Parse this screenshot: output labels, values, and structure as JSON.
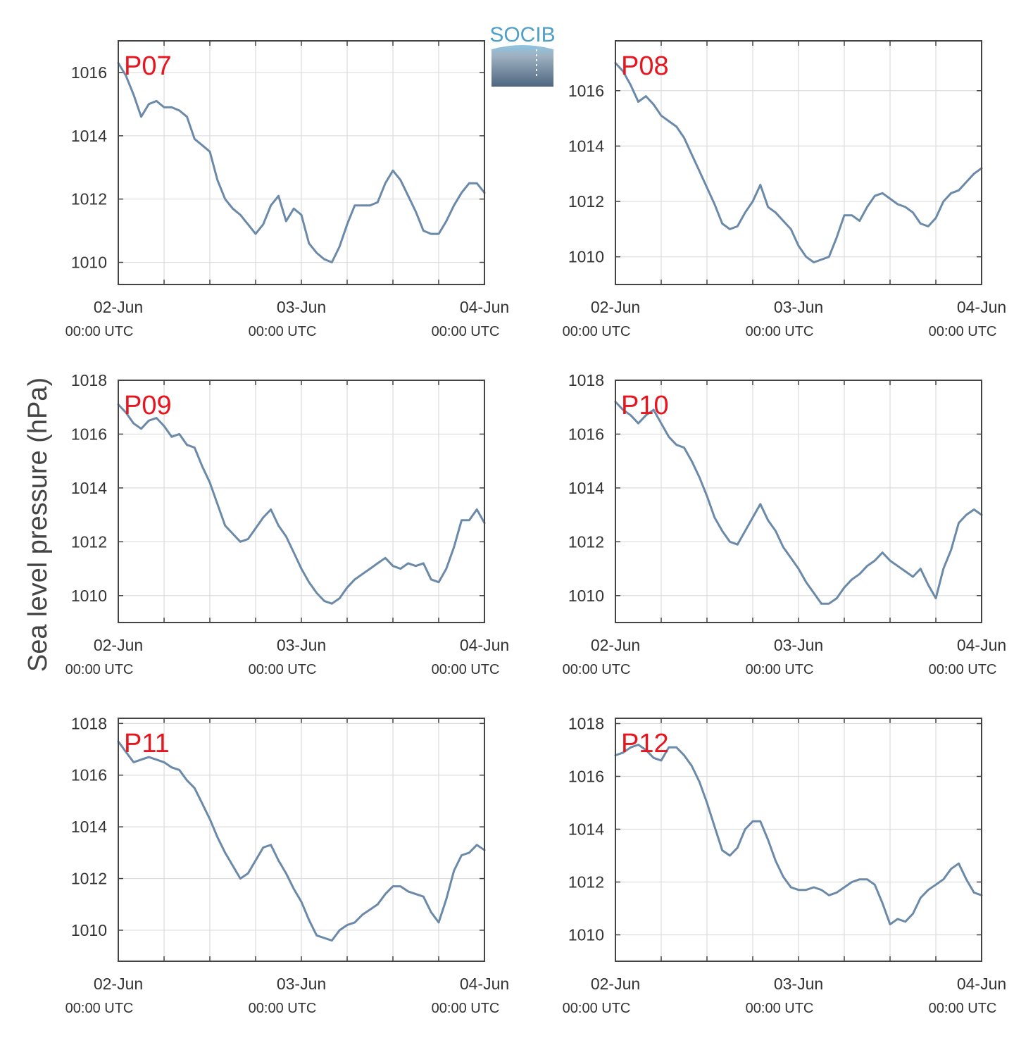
{
  "logo": {
    "text": "SOCIB"
  },
  "ylabel": "Sea level pressure (hPa)",
  "colors": {
    "line": "#6b89a8",
    "grid": "#dddddd",
    "axis": "#444444",
    "label": "#e8141e"
  },
  "chart_data": [
    {
      "type": "line",
      "title": "P07",
      "ylabel": "Sea level pressure (hPa)",
      "x_tick_labels": [
        {
          "x": 0,
          "date": "02-Jun",
          "time": "00:00 UTC"
        },
        {
          "x": 24,
          "date": "03-Jun",
          "time": "00:00 UTC"
        },
        {
          "x": 48,
          "date": "04-Jun",
          "time": "00:00 UTC"
        }
      ],
      "x_unit": "hours since 02-Jun 00:00 UTC",
      "xlim": [
        0,
        48
      ],
      "ylim": [
        1009.3,
        1017.0
      ],
      "yticks": [
        1010,
        1012,
        1014,
        1016
      ],
      "grid": true,
      "series": [
        {
          "x": [
            0,
            1,
            2,
            3,
            4,
            5,
            6,
            7,
            8,
            9,
            10,
            11,
            12,
            13,
            14,
            15,
            16,
            17,
            18,
            19,
            20,
            21,
            22,
            23,
            24,
            25,
            26,
            27,
            28,
            29,
            30,
            31,
            32,
            33,
            34,
            35,
            36,
            37,
            38,
            39,
            40,
            41,
            42,
            43,
            44,
            45,
            46,
            47,
            48
          ],
          "values": [
            1016.3,
            1015.9,
            1015.3,
            1014.6,
            1015.0,
            1015.1,
            1014.9,
            1014.9,
            1014.8,
            1014.6,
            1013.9,
            1013.7,
            1013.5,
            1012.6,
            1012.0,
            1011.7,
            1011.5,
            1011.2,
            1010.9,
            1011.2,
            1011.8,
            1012.1,
            1011.3,
            1011.7,
            1011.5,
            1010.6,
            1010.3,
            1010.1,
            1010.0,
            1010.5,
            1011.2,
            1011.8,
            1011.8,
            1011.8,
            1011.9,
            1012.5,
            1012.9,
            1012.6,
            1012.1,
            1011.6,
            1011.0,
            1010.9,
            1010.9,
            1011.3,
            1011.8,
            1012.2,
            1012.5,
            1012.5,
            1012.2
          ]
        }
      ]
    },
    {
      "type": "line",
      "title": "P08",
      "ylabel": "Sea level pressure (hPa)",
      "x_tick_labels": [
        {
          "x": 0,
          "date": "02-Jun",
          "time": "00:00 UTC"
        },
        {
          "x": 24,
          "date": "03-Jun",
          "time": "00:00 UTC"
        },
        {
          "x": 48,
          "date": "04-Jun",
          "time": "00:00 UTC"
        }
      ],
      "x_unit": "hours since 02-Jun 00:00 UTC",
      "xlim": [
        0,
        48
      ],
      "ylim": [
        1009.0,
        1017.8
      ],
      "yticks": [
        1010,
        1012,
        1014,
        1016
      ],
      "grid": true,
      "series": [
        {
          "x": [
            0,
            1,
            2,
            3,
            4,
            5,
            6,
            7,
            8,
            9,
            10,
            11,
            12,
            13,
            14,
            15,
            16,
            17,
            18,
            19,
            20,
            21,
            22,
            23,
            24,
            25,
            26,
            27,
            28,
            29,
            30,
            31,
            32,
            33,
            34,
            35,
            36,
            37,
            38,
            39,
            40,
            41,
            42,
            43,
            44,
            45,
            46,
            47,
            48
          ],
          "values": [
            1017.0,
            1016.7,
            1016.2,
            1015.6,
            1015.8,
            1015.5,
            1015.1,
            1014.9,
            1014.7,
            1014.3,
            1013.7,
            1013.1,
            1012.5,
            1011.9,
            1011.2,
            1011.0,
            1011.1,
            1011.6,
            1012.0,
            1012.6,
            1011.8,
            1011.6,
            1011.3,
            1011.0,
            1010.4,
            1010.0,
            1009.8,
            1009.9,
            1010.0,
            1010.7,
            1011.5,
            1011.5,
            1011.3,
            1011.8,
            1012.2,
            1012.3,
            1012.1,
            1011.9,
            1011.8,
            1011.6,
            1011.2,
            1011.1,
            1011.4,
            1012.0,
            1012.3,
            1012.4,
            1012.7,
            1013.0,
            1013.2
          ]
        }
      ]
    },
    {
      "type": "line",
      "title": "P09",
      "ylabel": "Sea level pressure (hPa)",
      "x_tick_labels": [
        {
          "x": 0,
          "date": "02-Jun",
          "time": "00:00 UTC"
        },
        {
          "x": 24,
          "date": "03-Jun",
          "time": "00:00 UTC"
        },
        {
          "x": 48,
          "date": "04-Jun",
          "time": "00:00 UTC"
        }
      ],
      "x_unit": "hours since 02-Jun 00:00 UTC",
      "xlim": [
        0,
        48
      ],
      "ylim": [
        1009.0,
        1018.0
      ],
      "yticks": [
        1010,
        1012,
        1014,
        1016,
        1018
      ],
      "grid": true,
      "series": [
        {
          "x": [
            0,
            1,
            2,
            3,
            4,
            5,
            6,
            7,
            8,
            9,
            10,
            11,
            12,
            13,
            14,
            15,
            16,
            17,
            18,
            19,
            20,
            21,
            22,
            23,
            24,
            25,
            26,
            27,
            28,
            29,
            30,
            31,
            32,
            33,
            34,
            35,
            36,
            37,
            38,
            39,
            40,
            41,
            42,
            43,
            44,
            45,
            46,
            47,
            48
          ],
          "values": [
            1017.1,
            1016.8,
            1016.4,
            1016.2,
            1016.5,
            1016.6,
            1016.3,
            1015.9,
            1016.0,
            1015.6,
            1015.5,
            1014.8,
            1014.2,
            1013.4,
            1012.6,
            1012.3,
            1012.0,
            1012.1,
            1012.5,
            1012.9,
            1013.2,
            1012.6,
            1012.2,
            1011.6,
            1011.0,
            1010.5,
            1010.1,
            1009.8,
            1009.7,
            1009.9,
            1010.3,
            1010.6,
            1010.8,
            1011.0,
            1011.2,
            1011.4,
            1011.1,
            1011.0,
            1011.2,
            1011.1,
            1011.2,
            1010.6,
            1010.5,
            1011.0,
            1011.8,
            1012.8,
            1012.8,
            1013.2,
            1012.7
          ]
        }
      ]
    },
    {
      "type": "line",
      "title": "P10",
      "ylabel": "Sea level pressure (hPa)",
      "x_tick_labels": [
        {
          "x": 0,
          "date": "02-Jun",
          "time": "00:00 UTC"
        },
        {
          "x": 24,
          "date": "03-Jun",
          "time": "00:00 UTC"
        },
        {
          "x": 48,
          "date": "04-Jun",
          "time": "00:00 UTC"
        }
      ],
      "x_unit": "hours since 02-Jun 00:00 UTC",
      "xlim": [
        0,
        48
      ],
      "ylim": [
        1009.0,
        1018.0
      ],
      "yticks": [
        1010,
        1012,
        1014,
        1016,
        1018
      ],
      "grid": true,
      "series": [
        {
          "x": [
            0,
            1,
            2,
            3,
            4,
            5,
            6,
            7,
            8,
            9,
            10,
            11,
            12,
            13,
            14,
            15,
            16,
            17,
            18,
            19,
            20,
            21,
            22,
            23,
            24,
            25,
            26,
            27,
            28,
            29,
            30,
            31,
            32,
            33,
            34,
            35,
            36,
            37,
            38,
            39,
            40,
            41,
            42,
            43,
            44,
            45,
            46,
            47,
            48
          ],
          "values": [
            1017.2,
            1016.9,
            1016.7,
            1016.4,
            1016.7,
            1016.9,
            1016.4,
            1015.9,
            1015.6,
            1015.5,
            1015.0,
            1014.4,
            1013.7,
            1012.9,
            1012.4,
            1012.0,
            1011.9,
            1012.4,
            1012.9,
            1013.4,
            1012.8,
            1012.4,
            1011.8,
            1011.4,
            1011.0,
            1010.5,
            1010.1,
            1009.7,
            1009.7,
            1009.9,
            1010.3,
            1010.6,
            1010.8,
            1011.1,
            1011.3,
            1011.6,
            1011.3,
            1011.1,
            1010.9,
            1010.7,
            1011.0,
            1010.4,
            1009.9,
            1011.0,
            1011.7,
            1012.7,
            1013.0,
            1013.2,
            1013.0
          ]
        }
      ]
    },
    {
      "type": "line",
      "title": "P11",
      "ylabel": "Sea level pressure (hPa)",
      "x_tick_labels": [
        {
          "x": 0,
          "date": "02-Jun",
          "time": "00:00 UTC"
        },
        {
          "x": 24,
          "date": "03-Jun",
          "time": "00:00 UTC"
        },
        {
          "x": 48,
          "date": "04-Jun",
          "time": "00:00 UTC"
        }
      ],
      "x_unit": "hours since 02-Jun 00:00 UTC",
      "xlim": [
        0,
        48
      ],
      "ylim": [
        1008.8,
        1018.2
      ],
      "yticks": [
        1010,
        1012,
        1014,
        1016,
        1018
      ],
      "grid": true,
      "series": [
        {
          "x": [
            0,
            1,
            2,
            3,
            4,
            5,
            6,
            7,
            8,
            9,
            10,
            11,
            12,
            13,
            14,
            15,
            16,
            17,
            18,
            19,
            20,
            21,
            22,
            23,
            24,
            25,
            26,
            27,
            28,
            29,
            30,
            31,
            32,
            33,
            34,
            35,
            36,
            37,
            38,
            39,
            40,
            41,
            42,
            43,
            44,
            45,
            46,
            47,
            48
          ],
          "values": [
            1017.3,
            1016.9,
            1016.5,
            1016.6,
            1016.7,
            1016.6,
            1016.5,
            1016.3,
            1016.2,
            1015.8,
            1015.5,
            1014.9,
            1014.3,
            1013.6,
            1013.0,
            1012.5,
            1012.0,
            1012.2,
            1012.7,
            1013.2,
            1013.3,
            1012.7,
            1012.2,
            1011.6,
            1011.1,
            1010.4,
            1009.8,
            1009.7,
            1009.6,
            1010.0,
            1010.2,
            1010.3,
            1010.6,
            1010.8,
            1011.0,
            1011.4,
            1011.7,
            1011.7,
            1011.5,
            1011.4,
            1011.3,
            1010.7,
            1010.3,
            1011.2,
            1012.3,
            1012.9,
            1013.0,
            1013.3,
            1013.1
          ]
        }
      ]
    },
    {
      "type": "line",
      "title": "P12",
      "ylabel": "Sea level pressure (hPa)",
      "x_tick_labels": [
        {
          "x": 0,
          "date": "02-Jun",
          "time": "00:00 UTC"
        },
        {
          "x": 24,
          "date": "03-Jun",
          "time": "00:00 UTC"
        },
        {
          "x": 48,
          "date": "04-Jun",
          "time": "00:00 UTC"
        }
      ],
      "x_unit": "hours since 02-Jun 00:00 UTC",
      "xlim": [
        0,
        48
      ],
      "ylim": [
        1009.0,
        1018.2
      ],
      "yticks": [
        1010,
        1012,
        1014,
        1016,
        1018
      ],
      "grid": true,
      "series": [
        {
          "x": [
            0,
            1,
            2,
            3,
            4,
            5,
            6,
            7,
            8,
            9,
            10,
            11,
            12,
            13,
            14,
            15,
            16,
            17,
            18,
            19,
            20,
            21,
            22,
            23,
            24,
            25,
            26,
            27,
            28,
            29,
            30,
            31,
            32,
            33,
            34,
            35,
            36,
            37,
            38,
            39,
            40,
            41,
            42,
            43,
            44,
            45,
            46,
            47,
            48
          ],
          "values": [
            1016.8,
            1016.9,
            1017.1,
            1017.2,
            1017.0,
            1016.7,
            1016.6,
            1017.1,
            1017.1,
            1016.8,
            1016.4,
            1015.8,
            1015.0,
            1014.1,
            1013.2,
            1013.0,
            1013.3,
            1014.0,
            1014.3,
            1014.3,
            1013.6,
            1012.8,
            1012.2,
            1011.8,
            1011.7,
            1011.7,
            1011.8,
            1011.7,
            1011.5,
            1011.6,
            1011.8,
            1012.0,
            1012.1,
            1012.1,
            1011.9,
            1011.2,
            1010.4,
            1010.6,
            1010.5,
            1010.8,
            1011.4,
            1011.7,
            1011.9,
            1012.1,
            1012.5,
            1012.7,
            1012.1,
            1011.6,
            1011.5
          ]
        }
      ]
    }
  ]
}
